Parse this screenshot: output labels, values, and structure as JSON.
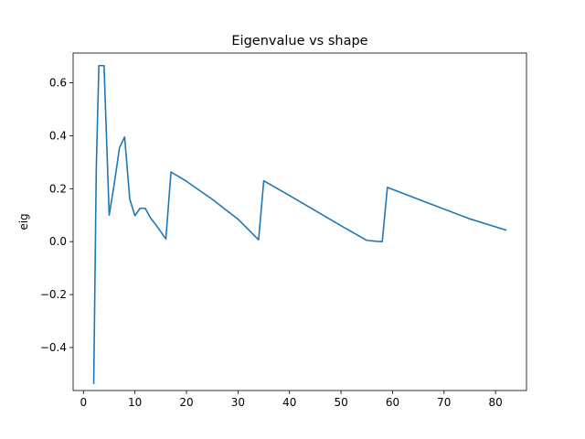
{
  "chart_data": {
    "type": "line",
    "title": "Eigenvalue vs shape",
    "xlabel": "",
    "ylabel": "eig",
    "xlim": [
      -2.0,
      86.0
    ],
    "ylim": [
      -0.5625,
      0.7125
    ],
    "xticks": [
      0,
      10,
      20,
      30,
      40,
      50,
      60,
      70,
      80
    ],
    "yticks": [
      -0.4,
      -0.2,
      0.0,
      0.2,
      0.4,
      0.6
    ],
    "ytick_labels": [
      "−0.4",
      "−0.2",
      "0.0",
      "0.2",
      "0.4",
      "0.6"
    ],
    "grid": false,
    "series": [
      {
        "color": "#1f77b4",
        "x": [
          2,
          2.5,
          3,
          4,
          5,
          6,
          7,
          8,
          9,
          10,
          11,
          12,
          13,
          14,
          15,
          16,
          17,
          20,
          25,
          30,
          34,
          35,
          40,
          45,
          50,
          55,
          57,
          58,
          59,
          65,
          70,
          75,
          82
        ],
        "y": [
          -0.535,
          0.28,
          0.665,
          0.665,
          0.1,
          0.22,
          0.355,
          0.395,
          0.16,
          0.098,
          0.126,
          0.126,
          0.09,
          0.065,
          0.038,
          0.01,
          0.263,
          0.228,
          0.16,
          0.085,
          0.007,
          0.23,
          0.174,
          0.117,
          0.06,
          0.005,
          0.001,
          0.0,
          0.205,
          0.16,
          0.123,
          0.086,
          0.044
        ]
      }
    ]
  }
}
